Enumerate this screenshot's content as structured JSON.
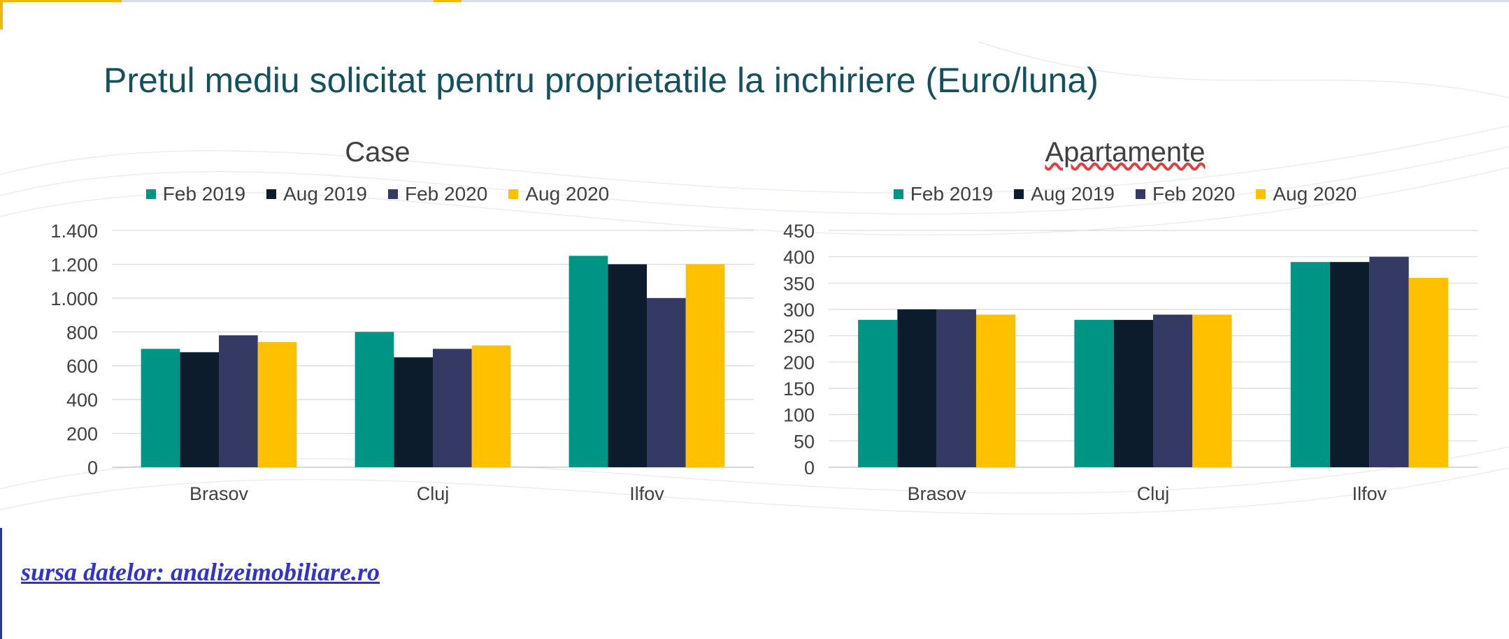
{
  "title": "Pretul mediu solicitat pentru proprietatile la inchiriere (Euro/luna)",
  "source_link": "sursa datelor: analizeimobiliare.ro",
  "colors": {
    "Feb 2019": "#009484",
    "Aug 2019": "#0c1c2c",
    "Feb 2020": "#343a64",
    "Aug 2020": "#ffc000"
  },
  "chart_data": [
    {
      "type": "bar",
      "title": "Case",
      "categories": [
        "Brasov",
        "Cluj",
        "Ilfov"
      ],
      "series": [
        {
          "name": "Feb 2019",
          "values": [
            700,
            800,
            1250
          ]
        },
        {
          "name": "Aug 2019",
          "values": [
            680,
            650,
            1200
          ]
        },
        {
          "name": "Feb 2020",
          "values": [
            780,
            700,
            1000
          ]
        },
        {
          "name": "Aug 2020",
          "values": [
            740,
            720,
            1200
          ]
        }
      ],
      "ylim": [
        0,
        1400
      ],
      "yticks": [
        0,
        200,
        400,
        600,
        800,
        1000,
        1200,
        1400
      ],
      "ytick_labels": [
        "0",
        "200",
        "400",
        "600",
        "800",
        "1.000",
        "1.200",
        "1.400"
      ],
      "grid": true,
      "legend": "top"
    },
    {
      "type": "bar",
      "title": "Apartamente",
      "categories": [
        "Brasov",
        "Cluj",
        "Ilfov"
      ],
      "series": [
        {
          "name": "Feb 2019",
          "values": [
            280,
            280,
            390
          ]
        },
        {
          "name": "Aug 2019",
          "values": [
            300,
            280,
            390
          ]
        },
        {
          "name": "Feb 2020",
          "values": [
            300,
            290,
            400
          ]
        },
        {
          "name": "Aug 2020",
          "values": [
            290,
            290,
            360
          ]
        }
      ],
      "ylim": [
        0,
        450
      ],
      "yticks": [
        0,
        50,
        100,
        150,
        200,
        250,
        300,
        350,
        400,
        450
      ],
      "ytick_labels": [
        "0",
        "50",
        "100",
        "150",
        "200",
        "250",
        "300",
        "350",
        "400",
        "450"
      ],
      "grid": true,
      "legend": "top"
    }
  ]
}
